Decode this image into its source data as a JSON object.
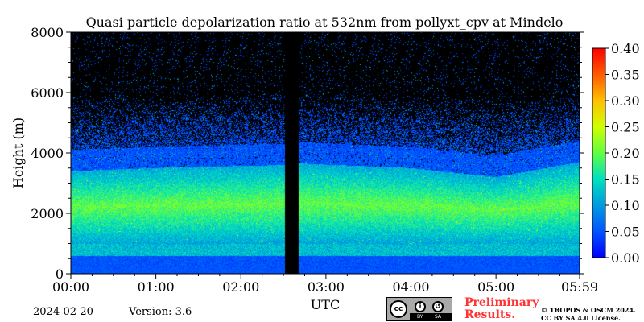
{
  "chart_data": {
    "type": "heatmap",
    "title": "Quasi particle depolarization ratio at 532nm from pollyxt_cpv at Mindelo",
    "xlabel": "UTC",
    "ylabel": "Height (m)",
    "x_ticks": [
      "00:00",
      "01:00",
      "02:00",
      "03:00",
      "04:00",
      "05:00",
      "05:59"
    ],
    "x_tick_minutes": [
      0,
      60,
      120,
      180,
      240,
      300,
      359
    ],
    "xlim_minutes": [
      0,
      359
    ],
    "y_ticks": [
      "0",
      "2000",
      "4000",
      "6000",
      "8000"
    ],
    "y_tick_values": [
      0,
      2000,
      4000,
      6000,
      8000
    ],
    "ylim": [
      0,
      8000
    ],
    "colorbar": {
      "range": [
        0.0,
        0.4
      ],
      "ticks": [
        "0.00",
        "0.05",
        "0.10",
        "0.15",
        "0.20",
        "0.25",
        "0.30",
        "0.35",
        "0.40"
      ],
      "tick_values": [
        0.0,
        0.05,
        0.1,
        0.15,
        0.2,
        0.25,
        0.3,
        0.35,
        0.4
      ],
      "colormap": "jet"
    },
    "no_data_color": "#000000",
    "data_gap_minutes": [
      151,
      161
    ],
    "layers": [
      {
        "name_hint": "surface layer",
        "bottom_m": 0,
        "top_m": 600,
        "value": 0.05
      },
      {
        "name_hint": "marine boundary layer",
        "bottom_m": 600,
        "top_m": 1000,
        "value": 0.12
      },
      {
        "name_hint": "dust layer",
        "bottom_m": 1000,
        "top_m_profile": [
          [
            0,
            3400
          ],
          [
            60,
            3500
          ],
          [
            151,
            3600
          ],
          [
            161,
            3650
          ],
          [
            240,
            3500
          ],
          [
            300,
            3200
          ],
          [
            359,
            3700
          ]
        ],
        "value": 0.17
      },
      {
        "name_hint": "noisy upper region",
        "bottom_m_profile": [
          [
            0,
            3400
          ],
          [
            359,
            3700
          ]
        ],
        "top_m": 8000,
        "value": 0.04
      }
    ]
  },
  "footer": {
    "date": "2024-02-20",
    "version": "Version: 3.6",
    "preliminary": "Preliminary\nResults.",
    "copyright": "© TROPOS & OSCM 2024.\nCC BY SA 4.0 License.",
    "license_badge": {
      "cc": "cc",
      "by": "BY",
      "sa": "SA"
    }
  }
}
